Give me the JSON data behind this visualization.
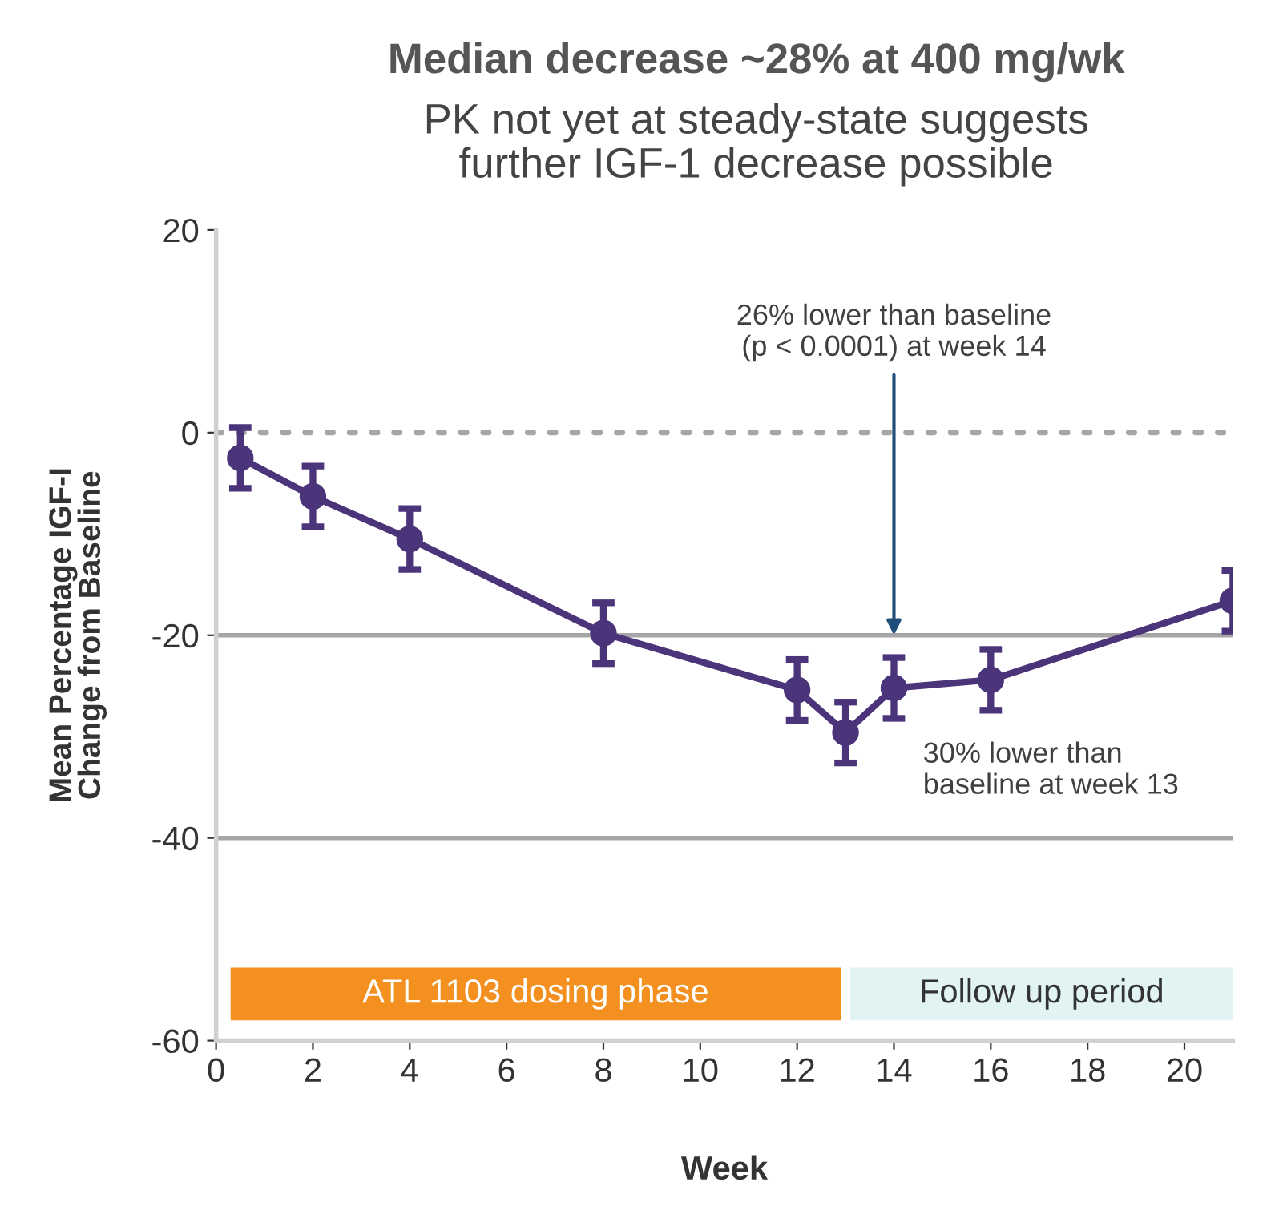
{
  "chart_data": {
    "type": "line",
    "title": "Median decrease ~28% at 400 mg/wk",
    "subtitle": "PK not yet at steady-state suggests\nfurther IGF-1 decrease possible",
    "xlabel": "Week",
    "ylabel": "Mean Percentage IGF-I\nChange from Baseline",
    "x": [
      0.5,
      2,
      4,
      8,
      12,
      13,
      14,
      16,
      21
    ],
    "series": [
      {
        "color": "#4b347a",
        "values": [
          -2.5,
          -6.3,
          -10.5,
          -19.8,
          -25.4,
          -29.6,
          -25.2,
          -24.4,
          -16.6
        ],
        "errors": [
          3,
          3,
          3,
          3,
          3,
          3,
          3,
          3,
          3
        ]
      }
    ],
    "xlim": [
      0,
      21
    ],
    "ylim": [
      -60,
      20
    ],
    "xticks": [
      0,
      2,
      4,
      6,
      8,
      10,
      12,
      14,
      16,
      18,
      20
    ],
    "yticks": [
      -60,
      -40,
      -20,
      0,
      20
    ],
    "grid": false,
    "legend": false,
    "marker": "circle",
    "line_style": "solid",
    "ref_lines": [
      {
        "axis": "y",
        "value": 0,
        "color": "#a6a6a6",
        "line_style": "dotted"
      },
      {
        "axis": "y",
        "value": -20,
        "color": "#a6a6a6",
        "line_style": "solid"
      },
      {
        "axis": "y",
        "value": -40,
        "color": "#a6a6a6",
        "line_style": "solid"
      }
    ],
    "bands": [
      {
        "axis": "x",
        "from": 0.3,
        "to": 12.9,
        "label": "ATL 1103 dosing phase",
        "color": "#f39020"
      },
      {
        "axis": "x",
        "from": 13.1,
        "to": 21,
        "label": "Follow up period",
        "color": "#e1f3f3"
      }
    ],
    "annotations": [
      {
        "text": "26% lower than baseline\n(p < 0.0001) at week 14",
        "x": 14,
        "y": -20
      },
      "30% lower than\nbaseline at week 13"
    ]
  }
}
